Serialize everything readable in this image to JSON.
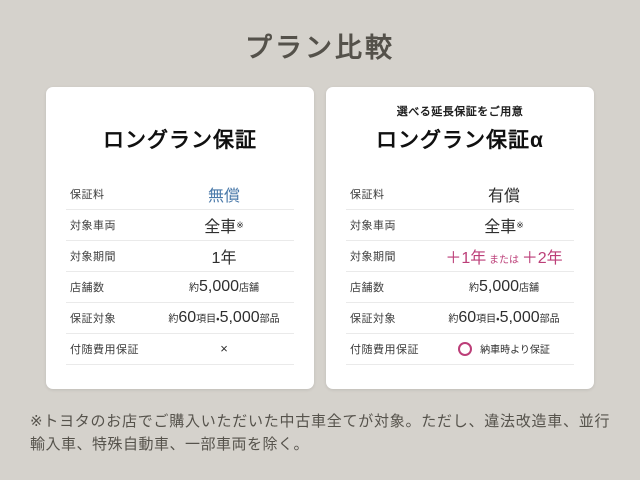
{
  "page_title": "プラン比較",
  "colors": {
    "accent_blue": "#4a79a9",
    "accent_pink": "#bc3e78",
    "page_background": "#d5d2cc"
  },
  "plans": [
    {
      "id": "longrun",
      "subtitle": "",
      "title": "ロングラン保証",
      "rows": [
        {
          "label": "保証料",
          "parts": [
            {
              "t": "無償",
              "s": "lg",
              "c": "blue"
            }
          ]
        },
        {
          "label": "対象車両",
          "parts": [
            {
              "t": "全車",
              "s": "lg"
            },
            {
              "t": "※",
              "s": "sup"
            }
          ]
        },
        {
          "label": "対象期間",
          "parts": [
            {
              "t": "1年",
              "s": "lg"
            }
          ]
        },
        {
          "label": "店舗数",
          "parts": [
            {
              "t": "約",
              "s": "sm"
            },
            {
              "t": "5,000",
              "s": "lg"
            },
            {
              "t": "店舗",
              "s": "sm"
            }
          ]
        },
        {
          "label": "保証対象",
          "parts": [
            {
              "t": "約",
              "s": "sm"
            },
            {
              "t": "60",
              "s": "lg"
            },
            {
              "t": "項目",
              "s": "sm"
            },
            {
              "t": "・",
              "s": "sm"
            },
            {
              "t": "5,000",
              "s": "lg"
            },
            {
              "t": "部品",
              "s": "sm"
            }
          ]
        },
        {
          "label": "付随費用保証",
          "parts": [
            {
              "t": "×",
              "s": "md",
              "n": "cross-mark-icon"
            }
          ]
        }
      ]
    },
    {
      "id": "longrun-alpha",
      "subtitle": "選べる延長保証をご用意",
      "title": "ロングラン保証α",
      "rows": [
        {
          "label": "保証料",
          "parts": [
            {
              "t": "有償",
              "s": "lg"
            }
          ]
        },
        {
          "label": "対象車両",
          "parts": [
            {
              "t": "全車",
              "s": "lg"
            },
            {
              "t": "※",
              "s": "sup"
            }
          ]
        },
        {
          "label": "対象期間",
          "parts": [
            {
              "t": "＋1年",
              "s": "lg",
              "c": "pink"
            },
            {
              "t": " または ",
              "s": "sm",
              "c": "pink"
            },
            {
              "t": "＋2年",
              "s": "lg",
              "c": "pink"
            }
          ]
        },
        {
          "label": "店舗数",
          "parts": [
            {
              "t": "約",
              "s": "sm"
            },
            {
              "t": "5,000",
              "s": "lg"
            },
            {
              "t": "店舗",
              "s": "sm"
            }
          ]
        },
        {
          "label": "保証対象",
          "parts": [
            {
              "t": "約",
              "s": "sm"
            },
            {
              "t": "60",
              "s": "lg"
            },
            {
              "t": "項目",
              "s": "sm"
            },
            {
              "t": "・",
              "s": "sm"
            },
            {
              "t": "5,000",
              "s": "lg"
            },
            {
              "t": "部品",
              "s": "sm"
            }
          ]
        },
        {
          "label": "付随費用保証",
          "icon": "circle-outline-icon",
          "parts": [
            {
              "t": "納車時より保証",
              "s": "sm"
            }
          ]
        }
      ]
    }
  ],
  "disclaimer": "※トヨタのお店でご購入いただいた中古車全てが対象。ただし、違法改造車、並行輸入車、特殊自動車、一部車両を除く。"
}
